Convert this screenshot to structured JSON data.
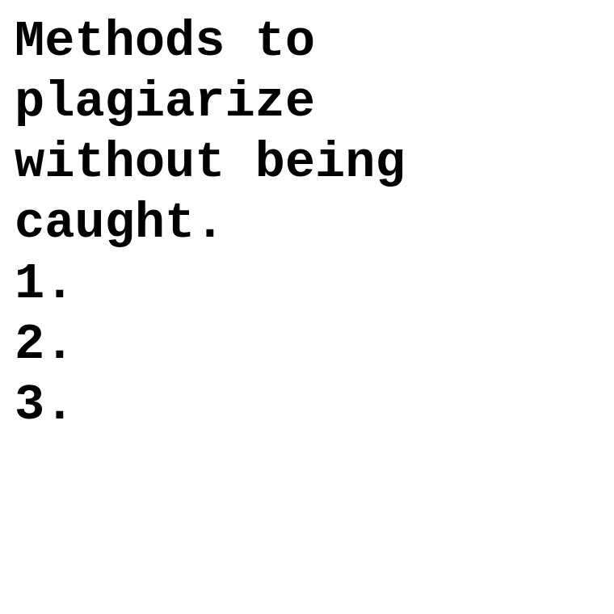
{
  "document": {
    "title_lines": [
      "Methods to",
      "plagiarize",
      "without being",
      "caught."
    ],
    "list_items": [
      "1.",
      "2.",
      "3."
    ]
  },
  "colors": {
    "background": "#ffffff",
    "text": "#000000"
  }
}
